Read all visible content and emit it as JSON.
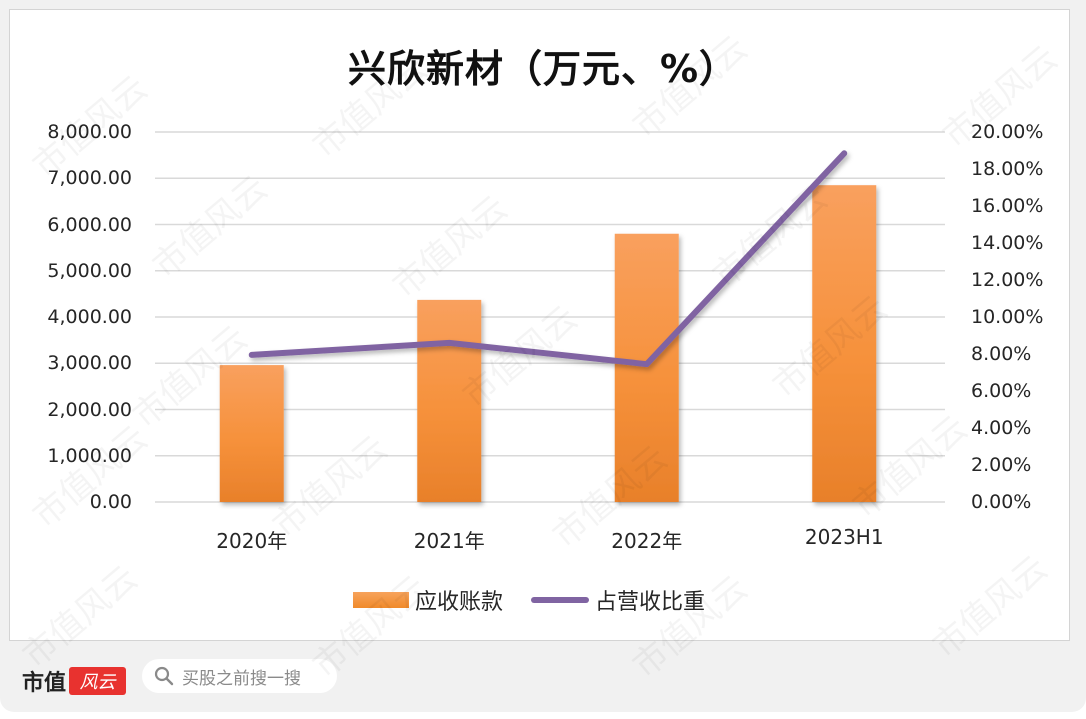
{
  "chart_data": {
    "type": "bar+line",
    "title": "兴欣新材（万元、%）",
    "categories": [
      "2020年",
      "2021年",
      "2022年",
      "2023H1"
    ],
    "series": [
      {
        "name": "应收账款",
        "type": "bar",
        "axis": "left",
        "color": "#f39237",
        "values": [
          2960,
          4370,
          5800,
          6850
        ]
      },
      {
        "name": "占营收比重",
        "type": "line",
        "axis": "right",
        "color": "#8064a2",
        "values": [
          7.95,
          8.6,
          7.45,
          18.85
        ]
      }
    ],
    "left_axis": {
      "ylim": [
        0,
        8000
      ],
      "ticks": [
        "0.00",
        "1,000.00",
        "2,000.00",
        "3,000.00",
        "4,000.00",
        "5,000.00",
        "6,000.00",
        "7,000.00",
        "8,000.00"
      ]
    },
    "right_axis": {
      "ylim": [
        0,
        20
      ],
      "ticks": [
        "0.00%",
        "2.00%",
        "4.00%",
        "6.00%",
        "8.00%",
        "10.00%",
        "12.00%",
        "14.00%",
        "16.00%",
        "18.00%",
        "20.00%"
      ]
    },
    "grid": true,
    "legend_position": "bottom"
  },
  "legend": {
    "bar_label": "应收账款",
    "line_label": "占营收比重"
  },
  "footer": {
    "logo_text": "市值",
    "logo_badge": "风云",
    "search_placeholder": "买股之前搜一搜"
  },
  "watermark": "市值风云"
}
